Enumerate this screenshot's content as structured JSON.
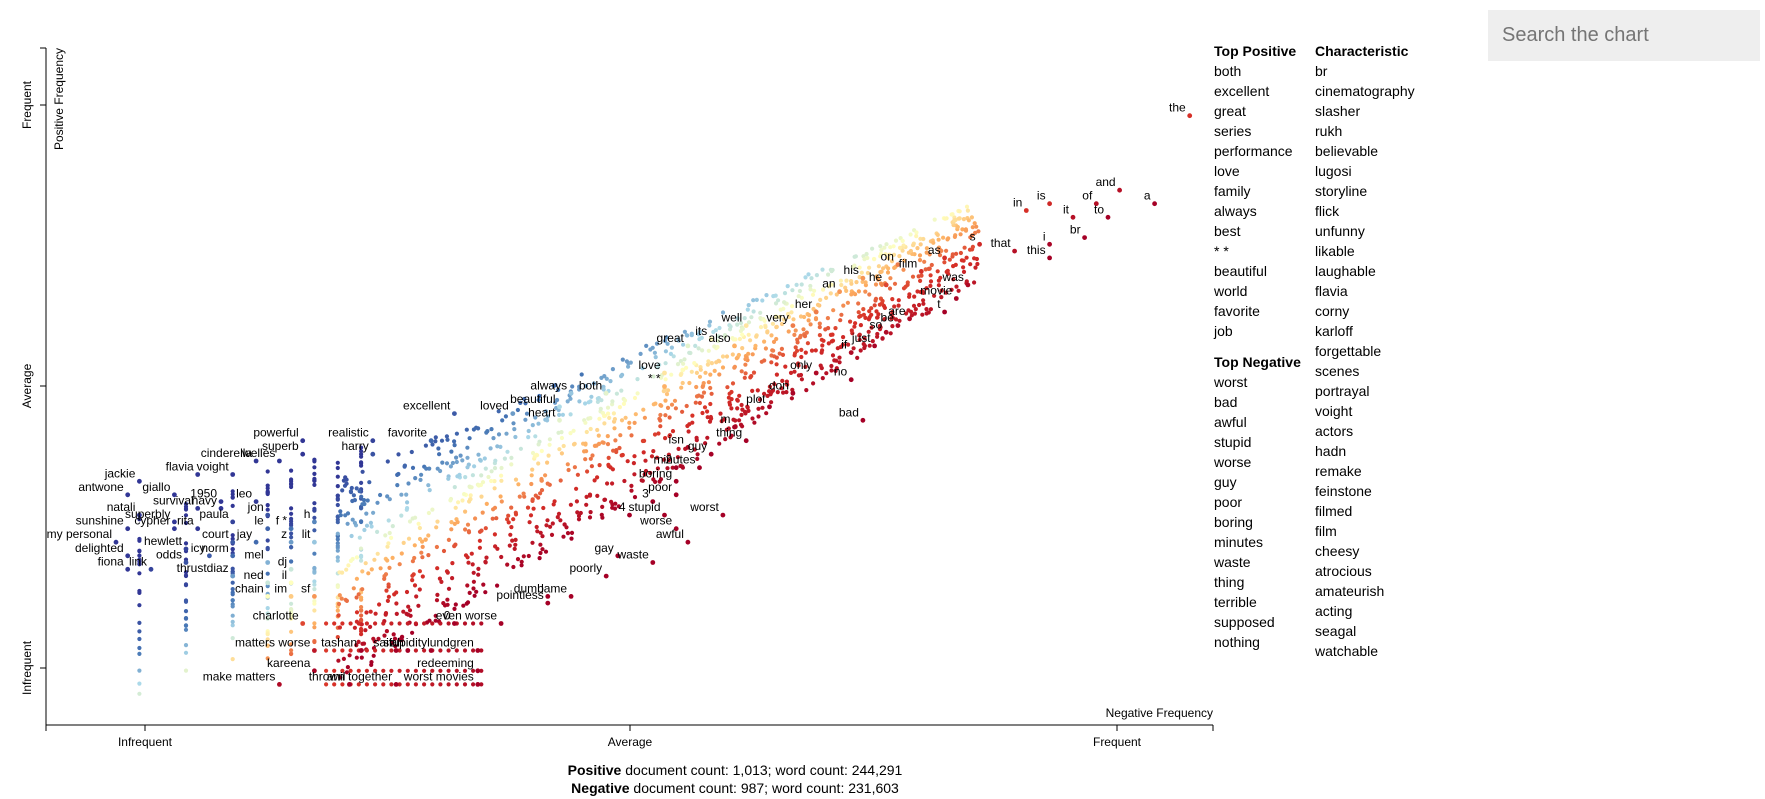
{
  "search": {
    "placeholder": "Search the chart"
  },
  "lists": {
    "top_positive": {
      "title": "Top Positive",
      "items": [
        "both",
        "excellent",
        "great",
        "series",
        "performance",
        "love",
        "family",
        "always",
        "best",
        "* *",
        "beautiful",
        "world",
        "favorite",
        "job"
      ]
    },
    "top_negative": {
      "title": "Top Negative",
      "items": [
        "worst",
        "bad",
        "awful",
        "stupid",
        "worse",
        "guy",
        "poor",
        "boring",
        "minutes",
        "waste",
        "thing",
        "terrible",
        "supposed",
        "nothing"
      ]
    },
    "characteristic": {
      "title": "Characteristic",
      "items": [
        "br",
        "cinematography",
        "slasher",
        "rukh",
        "believable",
        "lugosi",
        "storyline",
        "flick",
        "unfunny",
        "likable",
        "laughable",
        "flavia",
        "corny",
        "karloff",
        "forgettable",
        "scenes",
        "portrayal",
        "voight",
        "actors",
        "hadn",
        "remake",
        "feinstone",
        "filmed",
        "film",
        "cheesy",
        "atrocious",
        "amateurish",
        "acting",
        "seagal",
        "watchable"
      ]
    }
  },
  "footer": {
    "positive_label": "Positive",
    "positive_stats": "document count: 1,013; word count: 244,291",
    "negative_label": "Negative",
    "negative_stats": "document count: 987; word count: 231,603"
  },
  "chart_data": {
    "type": "scatter",
    "xlabel": "Negative Frequency",
    "ylabel": "Positive Frequency",
    "x_ticks": [
      "Infrequent",
      "Average",
      "Frequent"
    ],
    "y_ticks": [
      "Infrequent",
      "Average",
      "Frequent"
    ],
    "xlim": [
      0,
      1
    ],
    "ylim": [
      0,
      1
    ],
    "color_scale": {
      "positive": "#313695",
      "neutral": "#ffffbf",
      "negative": "#a50026"
    },
    "labeled_terms": [
      {
        "term": "the",
        "x": 0.98,
        "y": 0.9
      },
      {
        "term": "and",
        "x": 0.92,
        "y": 0.79
      },
      {
        "term": "a",
        "x": 0.95,
        "y": 0.77
      },
      {
        "term": "of",
        "x": 0.9,
        "y": 0.77
      },
      {
        "term": "to",
        "x": 0.91,
        "y": 0.75
      },
      {
        "term": "in",
        "x": 0.84,
        "y": 0.76
      },
      {
        "term": "is",
        "x": 0.86,
        "y": 0.77
      },
      {
        "term": "it",
        "x": 0.88,
        "y": 0.75
      },
      {
        "term": "br",
        "x": 0.89,
        "y": 0.72
      },
      {
        "term": "i",
        "x": 0.86,
        "y": 0.71
      },
      {
        "term": "this",
        "x": 0.86,
        "y": 0.69
      },
      {
        "term": "that",
        "x": 0.83,
        "y": 0.7
      },
      {
        "term": "s",
        "x": 0.8,
        "y": 0.71
      },
      {
        "term": "as",
        "x": 0.77,
        "y": 0.69
      },
      {
        "term": "film",
        "x": 0.75,
        "y": 0.67
      },
      {
        "term": "on",
        "x": 0.73,
        "y": 0.68
      },
      {
        "term": "his",
        "x": 0.7,
        "y": 0.66
      },
      {
        "term": "he",
        "x": 0.72,
        "y": 0.65
      },
      {
        "term": "was",
        "x": 0.79,
        "y": 0.65
      },
      {
        "term": "movie",
        "x": 0.78,
        "y": 0.63
      },
      {
        "term": "an",
        "x": 0.68,
        "y": 0.64
      },
      {
        "term": "her",
        "x": 0.66,
        "y": 0.61
      },
      {
        "term": "are",
        "x": 0.74,
        "y": 0.6
      },
      {
        "term": "t",
        "x": 0.77,
        "y": 0.61
      },
      {
        "term": "so",
        "x": 0.72,
        "y": 0.58
      },
      {
        "term": "be",
        "x": 0.73,
        "y": 0.59
      },
      {
        "term": "just",
        "x": 0.71,
        "y": 0.56
      },
      {
        "term": "if",
        "x": 0.69,
        "y": 0.55
      },
      {
        "term": "very",
        "x": 0.64,
        "y": 0.59
      },
      {
        "term": "well",
        "x": 0.6,
        "y": 0.59
      },
      {
        "term": "also",
        "x": 0.59,
        "y": 0.56
      },
      {
        "term": "its",
        "x": 0.57,
        "y": 0.57
      },
      {
        "term": "great",
        "x": 0.55,
        "y": 0.56
      },
      {
        "term": "only",
        "x": 0.66,
        "y": 0.52
      },
      {
        "term": "no",
        "x": 0.69,
        "y": 0.51
      },
      {
        "term": "don",
        "x": 0.64,
        "y": 0.49
      },
      {
        "term": "love",
        "x": 0.53,
        "y": 0.52
      },
      {
        "term": "* *",
        "x": 0.53,
        "y": 0.5
      },
      {
        "term": "both",
        "x": 0.48,
        "y": 0.49
      },
      {
        "term": "always",
        "x": 0.45,
        "y": 0.49
      },
      {
        "term": "plot",
        "x": 0.62,
        "y": 0.47
      },
      {
        "term": "bad",
        "x": 0.7,
        "y": 0.45
      },
      {
        "term": "m",
        "x": 0.59,
        "y": 0.44
      },
      {
        "term": "thing",
        "x": 0.6,
        "y": 0.42
      },
      {
        "term": "guy",
        "x": 0.57,
        "y": 0.4
      },
      {
        "term": "isn",
        "x": 0.55,
        "y": 0.41
      },
      {
        "term": "minutes",
        "x": 0.56,
        "y": 0.38
      },
      {
        "term": "2",
        "x": 0.54,
        "y": 0.38
      },
      {
        "term": "boring",
        "x": 0.54,
        "y": 0.36
      },
      {
        "term": "poor",
        "x": 0.54,
        "y": 0.34
      },
      {
        "term": "3",
        "x": 0.52,
        "y": 0.33
      },
      {
        "term": "4",
        "x": 0.5,
        "y": 0.31
      },
      {
        "term": "stupid",
        "x": 0.53,
        "y": 0.31
      },
      {
        "term": "worst",
        "x": 0.58,
        "y": 0.31
      },
      {
        "term": "worse",
        "x": 0.54,
        "y": 0.29
      },
      {
        "term": "awful",
        "x": 0.55,
        "y": 0.27
      },
      {
        "term": "gay",
        "x": 0.49,
        "y": 0.25
      },
      {
        "term": "waste",
        "x": 0.52,
        "y": 0.24
      },
      {
        "term": "poorly",
        "x": 0.48,
        "y": 0.22
      },
      {
        "term": "lame",
        "x": 0.45,
        "y": 0.19
      },
      {
        "term": "dumb",
        "x": 0.43,
        "y": 0.19
      },
      {
        "term": "pointless",
        "x": 0.43,
        "y": 0.18
      },
      {
        "term": "beautiful",
        "x": 0.44,
        "y": 0.47
      },
      {
        "term": "heart",
        "x": 0.44,
        "y": 0.45
      },
      {
        "term": "loved",
        "x": 0.4,
        "y": 0.46
      },
      {
        "term": "excellent",
        "x": 0.35,
        "y": 0.46
      },
      {
        "term": "favorite",
        "x": 0.33,
        "y": 0.42
      },
      {
        "term": "realistic",
        "x": 0.28,
        "y": 0.42
      },
      {
        "term": "harry",
        "x": 0.28,
        "y": 0.4
      },
      {
        "term": "powerful",
        "x": 0.22,
        "y": 0.42
      },
      {
        "term": "superb",
        "x": 0.22,
        "y": 0.4
      },
      {
        "term": "welles",
        "x": 0.2,
        "y": 0.39
      },
      {
        "term": "cinderella",
        "x": 0.18,
        "y": 0.39
      },
      {
        "term": "flavia",
        "x": 0.13,
        "y": 0.37
      },
      {
        "term": "voight",
        "x": 0.16,
        "y": 0.37
      },
      {
        "term": "jackie",
        "x": 0.08,
        "y": 0.36
      },
      {
        "term": "antwone",
        "x": 0.07,
        "y": 0.34
      },
      {
        "term": "giallo",
        "x": 0.11,
        "y": 0.34
      },
      {
        "term": "1950",
        "x": 0.15,
        "y": 0.33
      },
      {
        "term": "leo",
        "x": 0.18,
        "y": 0.33
      },
      {
        "term": "survival",
        "x": 0.13,
        "y": 0.32
      },
      {
        "term": "navy",
        "x": 0.15,
        "y": 0.32
      },
      {
        "term": "natali",
        "x": 0.08,
        "y": 0.31
      },
      {
        "term": "jon",
        "x": 0.19,
        "y": 0.31
      },
      {
        "term": "superbly",
        "x": 0.11,
        "y": 0.3
      },
      {
        "term": "paula",
        "x": 0.16,
        "y": 0.3
      },
      {
        "term": "le",
        "x": 0.19,
        "y": 0.29
      },
      {
        "term": "f *",
        "x": 0.21,
        "y": 0.29
      },
      {
        "term": "h",
        "x": 0.23,
        "y": 0.3
      },
      {
        "term": "sunshine",
        "x": 0.07,
        "y": 0.29
      },
      {
        "term": "cypher",
        "x": 0.11,
        "y": 0.29
      },
      {
        "term": "rita",
        "x": 0.13,
        "y": 0.29
      },
      {
        "term": "court",
        "x": 0.16,
        "y": 0.27
      },
      {
        "term": "jay",
        "x": 0.18,
        "y": 0.27
      },
      {
        "term": "z",
        "x": 0.21,
        "y": 0.27
      },
      {
        "term": "lit",
        "x": 0.23,
        "y": 0.27
      },
      {
        "term": "my personal",
        "x": 0.06,
        "y": 0.27
      },
      {
        "term": "hewlett",
        "x": 0.12,
        "y": 0.26
      },
      {
        "term": "delighted",
        "x": 0.07,
        "y": 0.25
      },
      {
        "term": "icy",
        "x": 0.14,
        "y": 0.25
      },
      {
        "term": "norm",
        "x": 0.16,
        "y": 0.25
      },
      {
        "term": "odds",
        "x": 0.12,
        "y": 0.24
      },
      {
        "term": "mel",
        "x": 0.19,
        "y": 0.24
      },
      {
        "term": "fiona",
        "x": 0.07,
        "y": 0.23
      },
      {
        "term": "link",
        "x": 0.09,
        "y": 0.23
      },
      {
        "term": "dj",
        "x": 0.21,
        "y": 0.23
      },
      {
        "term": "thrustdiaz",
        "x": 0.16,
        "y": 0.22
      },
      {
        "term": "ned",
        "x": 0.19,
        "y": 0.21
      },
      {
        "term": "il",
        "x": 0.21,
        "y": 0.21
      },
      {
        "term": "chain",
        "x": 0.19,
        "y": 0.19
      },
      {
        "term": "im",
        "x": 0.21,
        "y": 0.19
      },
      {
        "term": "sf",
        "x": 0.23,
        "y": 0.19
      },
      {
        "term": "charlotte",
        "x": 0.22,
        "y": 0.15
      },
      {
        "term": "0",
        "x": 0.35,
        "y": 0.15
      },
      {
        "term": "even worse",
        "x": 0.39,
        "y": 0.15
      },
      {
        "term": "matters worse",
        "x": 0.23,
        "y": 0.11
      },
      {
        "term": "tashan",
        "x": 0.27,
        "y": 0.11
      },
      {
        "term": "saif",
        "x": 0.3,
        "y": 0.11
      },
      {
        "term": "ah",
        "x": 0.31,
        "y": 0.11
      },
      {
        "term": "stupidity",
        "x": 0.33,
        "y": 0.11
      },
      {
        "term": "lundgren",
        "x": 0.37,
        "y": 0.11
      },
      {
        "term": "kareena",
        "x": 0.23,
        "y": 0.08
      },
      {
        "term": "redeeming",
        "x": 0.37,
        "y": 0.08
      },
      {
        "term": "make matters",
        "x": 0.2,
        "y": 0.06
      },
      {
        "term": "anil",
        "x": 0.26,
        "y": 0.06
      },
      {
        "term": "thrown together",
        "x": 0.3,
        "y": 0.06
      },
      {
        "term": "worst movies",
        "x": 0.37,
        "y": 0.06
      }
    ]
  }
}
